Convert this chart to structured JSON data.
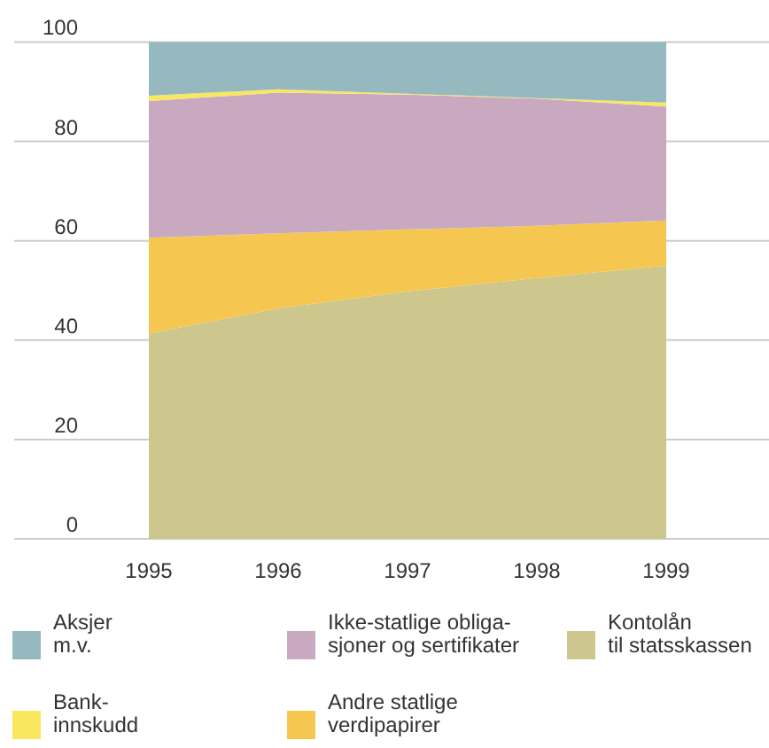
{
  "chart_data": {
    "type": "area",
    "stacked": true,
    "categories": [
      "1995",
      "1996",
      "1997",
      "1998",
      "1999"
    ],
    "series": [
      {
        "name": "Kontolån\ntil statsskassen",
        "color": "#cdc78e",
        "values": [
          41.3,
          46.4,
          49.8,
          52.5,
          55
        ]
      },
      {
        "name": "Andre statlige\nverdipapirer",
        "color": "#f5c750",
        "values": [
          19.3,
          15.1,
          12.5,
          10.5,
          9.1
        ]
      },
      {
        "name": "Ikke-statlige obliga-\nsjoner og sertifikater",
        "color": "#c8a9bf",
        "values": [
          27.5,
          28.3,
          27.1,
          25.6,
          22.9
        ]
      },
      {
        "name": "Bank-\ninnskudd",
        "color": "#f9e760",
        "values": [
          1.1,
          0.7,
          0.2,
          0.1,
          0.8
        ]
      },
      {
        "name": "Aksjer\nm.v.",
        "color": "#96b9bf",
        "values": [
          10.8,
          9.5,
          10.4,
          11.3,
          12.2
        ]
      }
    ],
    "ylim": [
      0,
      100
    ],
    "yticks": [
      0,
      20,
      40,
      60,
      80,
      100
    ],
    "grid": "y",
    "legend": "bottom"
  }
}
